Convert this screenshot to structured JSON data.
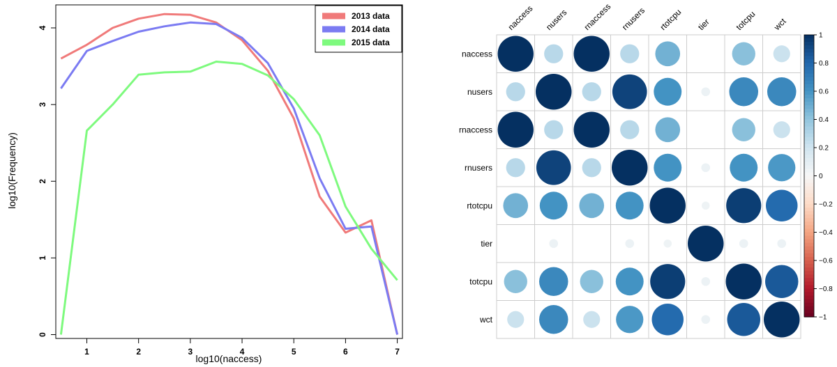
{
  "chart_data": [
    {
      "type": "line",
      "title": "",
      "xlabel": "log10(naccess)",
      "ylabel": "log10(Frequency)",
      "xlim": [
        0.4,
        7.1
      ],
      "ylim": [
        -0.05,
        4.3
      ],
      "x_ticks": [
        "1",
        "2",
        "3",
        "4",
        "5",
        "6",
        "7"
      ],
      "y_ticks": [
        "0",
        "1",
        "2",
        "3",
        "4"
      ],
      "legend_position": "top-right",
      "grid": false,
      "x": [
        0.5,
        1,
        1.5,
        2,
        2.5,
        3,
        3.5,
        4,
        4.5,
        5,
        5.5,
        6,
        6.5,
        7
      ],
      "series": [
        {
          "name": "2013 data",
          "color": "#f07a7a",
          "values": [
            3.6,
            3.78,
            4.0,
            4.12,
            4.18,
            4.17,
            4.07,
            3.84,
            3.44,
            2.82,
            1.8,
            1.33,
            1.49,
            0.0
          ]
        },
        {
          "name": "2014 data",
          "color": "#7b7bf2",
          "values": [
            3.21,
            3.7,
            3.83,
            3.95,
            4.02,
            4.07,
            4.05,
            3.87,
            3.54,
            2.95,
            2.04,
            1.38,
            1.41,
            0.0
          ]
        },
        {
          "name": "2015 data",
          "color": "#7efa7e",
          "values": [
            0.0,
            2.66,
            3.0,
            3.39,
            3.42,
            3.43,
            3.56,
            3.53,
            3.38,
            3.07,
            2.6,
            1.67,
            1.12,
            0.71
          ]
        }
      ]
    },
    {
      "type": "heatmap",
      "title": "",
      "variables": [
        "naccess",
        "nusers",
        "rnaccess",
        "rnusers",
        "rtotcpu",
        "tier",
        "totcpu",
        "wct"
      ],
      "matrix": [
        [
          1.0,
          0.28,
          1.0,
          0.28,
          0.48,
          0.0,
          0.42,
          0.22
        ],
        [
          0.28,
          1.0,
          0.28,
          0.93,
          0.6,
          0.06,
          0.65,
          0.65
        ],
        [
          1.0,
          0.28,
          1.0,
          0.28,
          0.48,
          0.0,
          0.42,
          0.22
        ],
        [
          0.28,
          0.93,
          0.28,
          1.0,
          0.6,
          0.06,
          0.6,
          0.58
        ],
        [
          0.48,
          0.6,
          0.48,
          0.6,
          1.0,
          0.05,
          0.95,
          0.78
        ],
        [
          0.0,
          0.06,
          0.0,
          0.06,
          0.05,
          1.0,
          0.06,
          0.06
        ],
        [
          0.42,
          0.65,
          0.42,
          0.6,
          0.95,
          0.06,
          1.0,
          0.85
        ],
        [
          0.22,
          0.65,
          0.22,
          0.58,
          0.78,
          0.06,
          0.85,
          1.0
        ]
      ],
      "colorbar_ticks": [
        "1",
        "0.8",
        "0.6",
        "0.4",
        "0.2",
        "0",
        "−0.2",
        "−0.4",
        "−0.6",
        "−0.8",
        "−1"
      ],
      "color_range": [
        -1,
        1
      ],
      "colors": {
        "negative": "#67001f",
        "neutral": "#f7f7f7",
        "positive": "#053061"
      }
    }
  ]
}
